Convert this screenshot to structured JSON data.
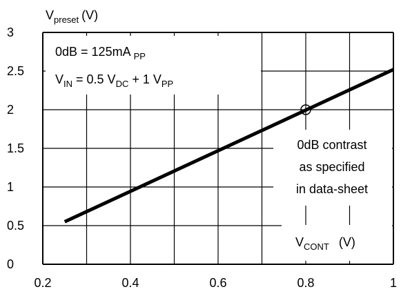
{
  "chart_data": {
    "type": "line",
    "title": "",
    "ylabel_main": "V",
    "ylabel_sub": "preset",
    "ylabel_unit": "(V)",
    "xlabel_main": "V",
    "xlabel_sub": "CONT",
    "xlabel_unit": "(V)",
    "xlim": [
      0.2,
      1.0
    ],
    "ylim": [
      0,
      3
    ],
    "x_ticks": [
      0.2,
      0.4,
      0.6,
      0.8,
      1.0
    ],
    "x_tick_labels": [
      "0.2",
      "0.4",
      "0.6",
      "0.8",
      "1"
    ],
    "y_ticks": [
      0,
      0.5,
      1,
      1.5,
      2,
      2.5,
      3
    ],
    "y_tick_labels": [
      "0",
      "0.5",
      "1",
      "1.5",
      "2",
      "2.5",
      "3"
    ],
    "grid": true,
    "series": [
      {
        "x": [
          0.25,
          1.0
        ],
        "y": [
          0.55,
          2.52
        ]
      }
    ],
    "marker": {
      "x": 0.8,
      "y": 2.0
    },
    "annotations": {
      "line1": "0dB = 125mA",
      "line1_sub": "PP",
      "line2_v": "V",
      "line2_in": "IN",
      "line2_mid": " = 0.5  V",
      "line2_dc": "DC",
      "line2_plus": "  + 1 V",
      "line2_pp": "PP",
      "note1": "0dB contrast",
      "note2": "as specified",
      "note3": "in data-sheet"
    },
    "colors": {
      "line": "#000000",
      "grid": "#000000",
      "background": "#ffffff"
    }
  }
}
